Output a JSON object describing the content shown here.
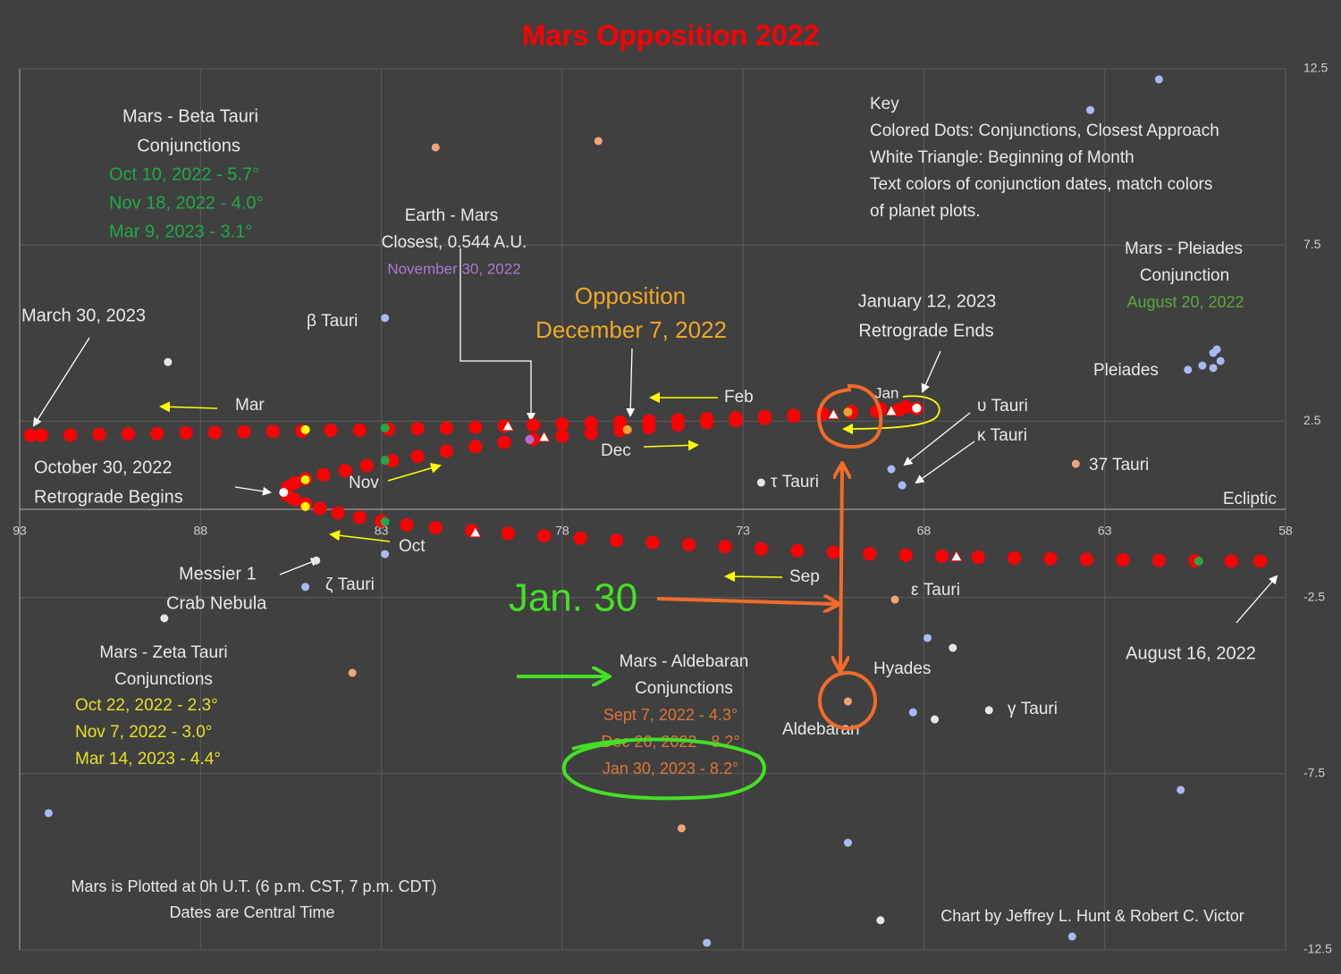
{
  "chart_data": {
    "type": "scatter",
    "title": "Mars Opposition 2022",
    "xlim": [
      93,
      58
    ],
    "ylim": [
      -12.5,
      12.5
    ],
    "xticks": [
      93,
      88,
      83,
      78,
      73,
      68,
      63,
      58
    ],
    "yticks": [
      12.5,
      7.5,
      2.5,
      -2.5,
      -7.5,
      -12.5
    ],
    "grid": true,
    "series": [
      {
        "color": "#ff0000",
        "marker": "circle",
        "x": [
          58.7,
          59.5,
          60.5,
          61.5,
          62.5,
          63.5,
          64.5,
          65.5,
          66.5,
          67.5,
          68.5,
          69.5,
          70.5,
          71.5,
          72.5,
          73.5,
          74.5,
          75.5,
          76.5,
          77.5,
          78.5,
          79.5,
          80.5,
          81.5,
          82.3,
          83,
          83.6,
          84.2,
          84.7,
          85.1,
          85.4,
          85.6,
          85.6,
          85.4,
          85.1,
          84.6,
          84,
          83.4,
          82.7,
          82,
          81.2,
          80.4,
          79.6,
          78.8,
          78,
          77.2,
          76.4,
          75.6,
          74.8,
          74,
          73.2,
          72.4,
          71.6,
          70.8,
          70,
          69.3,
          68.7,
          68.2,
          68.5,
          69.2,
          70,
          70.8,
          71.6,
          72.4,
          73.2,
          74,
          74.8,
          75.6,
          76.4,
          77.2,
          78,
          78.8,
          79.6,
          80.4,
          81.2,
          82,
          82.8,
          83.6,
          84.4,
          85.2,
          86,
          86.8,
          87.6,
          88.4,
          89.2,
          90,
          90.8,
          91.6,
          92.4,
          92.7
        ],
        "values": [
          -1.47,
          -1.47,
          -1.46,
          -1.45,
          -1.43,
          -1.42,
          -1.4,
          -1.38,
          -1.36,
          -1.33,
          -1.3,
          -1.26,
          -1.22,
          -1.17,
          -1.12,
          -1.06,
          -1,
          -0.94,
          -0.88,
          -0.82,
          -0.75,
          -0.68,
          -0.6,
          -0.52,
          -0.44,
          -0.33,
          -0.23,
          -0.1,
          0.03,
          0.15,
          0.28,
          0.4,
          0.62,
          0.75,
          0.86,
          0.98,
          1.1,
          1.24,
          1.38,
          1.5,
          1.65,
          1.78,
          1.9,
          1.99,
          2.08,
          2.16,
          2.24,
          2.32,
          2.4,
          2.46,
          2.52,
          2.58,
          2.64,
          2.7,
          2.74,
          2.78,
          2.82,
          2.86,
          2.9,
          2.85,
          2.78,
          2.72,
          2.67,
          2.63,
          2.6,
          2.57,
          2.54,
          2.51,
          2.48,
          2.45,
          2.42,
          2.39,
          2.36,
          2.33,
          2.31,
          2.29,
          2.27,
          2.25,
          2.24,
          2.22,
          2.21,
          2.2,
          2.18,
          2.17,
          2.15,
          2.14,
          2.13,
          2.11,
          2.1,
          2.1
        ]
      },
      {
        "color": "#ffffff",
        "marker": "triangle",
        "x": [
          70.5,
          68.9,
          79.5,
          78.5,
          67.1,
          80.4
        ],
        "values": [
          2.69,
          2.79,
          2.36,
          2.05,
          -1.34,
          -0.66
        ]
      },
      {
        "color": "#ffff00",
        "marker": "circle",
        "x": [
          85.1,
          85.1,
          85.1
        ],
        "values": [
          2.26,
          0.84,
          0.08
        ]
      },
      {
        "color": "#22a84a",
        "marker": "circle",
        "x": [
          82.9,
          82.9,
          82.9,
          60.4
        ],
        "values": [
          2.31,
          1.39,
          -0.35,
          -1.47
        ]
      },
      {
        "color": "#f4a030",
        "marker": "circle",
        "x": [
          76.2,
          70.1
        ],
        "values": [
          2.26,
          2.76
        ]
      },
      {
        "color": "#b070d0",
        "marker": "circle",
        "x": [
          78.9
        ],
        "values": [
          1.98
        ]
      },
      {
        "color": "#ffffff",
        "marker": "circle",
        "x": [
          85.7,
          68.2
        ],
        "values": [
          0.48,
          2.87
        ]
      },
      {
        "color": "#a9b9f2",
        "marker": "star",
        "x": [
          63.4,
          61.5,
          82.9,
          85.1,
          68.9,
          68.6,
          60.7,
          60.3,
          60.0,
          60.0,
          59.9,
          59.8,
          92.2,
          82.9,
          67.9,
          68.3,
          60.9,
          70.1,
          63.9,
          74.0
        ],
        "values": [
          11.33,
          12.2,
          5.43,
          -2.2,
          1.14,
          0.68,
          3.96,
          4.08,
          4.01,
          4.44,
          4.54,
          4.21,
          -8.62,
          -1.27,
          -3.65,
          -5.76,
          -7.96,
          -9.46,
          -12.12,
          -12.3
        ]
      },
      {
        "color": "#f2a477",
        "marker": "star",
        "x": [
          81.5,
          77.0,
          63.8,
          68.8,
          83.8,
          74.7,
          70.1
        ],
        "values": [
          10.27,
          10.45,
          1.29,
          -2.56,
          -4.64,
          -9.05,
          -5.45
        ]
      },
      {
        "color": "#e6e6e6",
        "marker": "star",
        "x": [
          88.9,
          89.0,
          72.5,
          84.8,
          67.2,
          67.7,
          66.2,
          69.2
        ],
        "values": [
          4.18,
          -3.09,
          0.76,
          -1.45,
          -3.93,
          -5.96,
          -5.7,
          -11.66
        ]
      }
    ],
    "annotations": [
      {
        "text": "Key"
      },
      {
        "text": "Colored Dots: Conjunctions, Closest Approach"
      },
      {
        "text": "White Triangle: Beginning of Month"
      },
      {
        "text": "Text colors of conjunction dates, match colors"
      },
      {
        "text": "of planet plots."
      },
      {
        "text": "Mars - Beta Tauri"
      },
      {
        "text": "Conjunctions"
      },
      {
        "text": "Oct 10, 2022 - 5.7°",
        "color": "#22a84a"
      },
      {
        "text": "Nov 18, 2022 - 4.0°",
        "color": "#22a84a"
      },
      {
        "text": "Mar 9, 2023 - 3.1°",
        "color": "#22a84a"
      },
      {
        "text": "Earth - Mars"
      },
      {
        "text": "Closest, 0.544 A.U."
      },
      {
        "text": "November 30, 2022",
        "color": "#a67bd0"
      },
      {
        "text": "Opposition",
        "color": "#f0a824"
      },
      {
        "text": "December 7, 2022",
        "color": "#f0a824"
      },
      {
        "text": "January 12, 2023"
      },
      {
        "text": "Retrograde Ends"
      },
      {
        "text": "Mars - Pleiades"
      },
      {
        "text": "Conjunction"
      },
      {
        "text": "August 20, 2022",
        "color": "#5aa83a"
      },
      {
        "text": "March 30, 2023"
      },
      {
        "text": "β Tauri"
      },
      {
        "text": "Pleiades"
      },
      {
        "text": "υ Tauri"
      },
      {
        "text": "κ Tauri"
      },
      {
        "text": "37 Tauri"
      },
      {
        "text": "τ Tauri"
      },
      {
        "text": "Ecliptic"
      },
      {
        "text": "October 30, 2022"
      },
      {
        "text": "Retrograde Begins"
      },
      {
        "text": "Mar"
      },
      {
        "text": "Feb"
      },
      {
        "text": "Jan"
      },
      {
        "text": "Dec"
      },
      {
        "text": "Nov"
      },
      {
        "text": "Oct"
      },
      {
        "text": "Sep"
      },
      {
        "text": "Messier 1"
      },
      {
        "text": "Crab Nebula"
      },
      {
        "text": "ζ Tauri"
      },
      {
        "text": "ε Tauri"
      },
      {
        "text": "Hyades"
      },
      {
        "text": "γ Tauri"
      },
      {
        "text": "Aldebaran"
      },
      {
        "text": "Mars - Zeta Tauri"
      },
      {
        "text": "Conjunctions"
      },
      {
        "text": "Oct 22, 2022 - 2.3°",
        "color": "#e6e020"
      },
      {
        "text": "Nov 7, 2022 - 3.0°",
        "color": "#e6e020"
      },
      {
        "text": "Mar 14, 2023 - 4.4°",
        "color": "#e6e020"
      },
      {
        "text": "Jan. 30",
        "color": "#44e024"
      },
      {
        "text": "Mars - Aldebaran"
      },
      {
        "text": "Conjunctions"
      },
      {
        "text": "Sept 7, 2022 - 4.3°",
        "color": "#d9763a"
      },
      {
        "text": "Dec 26, 2022 - 8.2°",
        "color": "#d9763a"
      },
      {
        "text": "Jan 30, 2023 - 8.2°",
        "color": "#d9763a"
      },
      {
        "text": "August 16, 2022"
      },
      {
        "text": "Mars is Plotted at 0h U.T. (6 p.m. CST, 7 p.m. CDT)"
      },
      {
        "text": "Dates are Central Time"
      },
      {
        "text": "Chart by Jeffrey L. Hunt & Robert C. Victor"
      }
    ]
  }
}
